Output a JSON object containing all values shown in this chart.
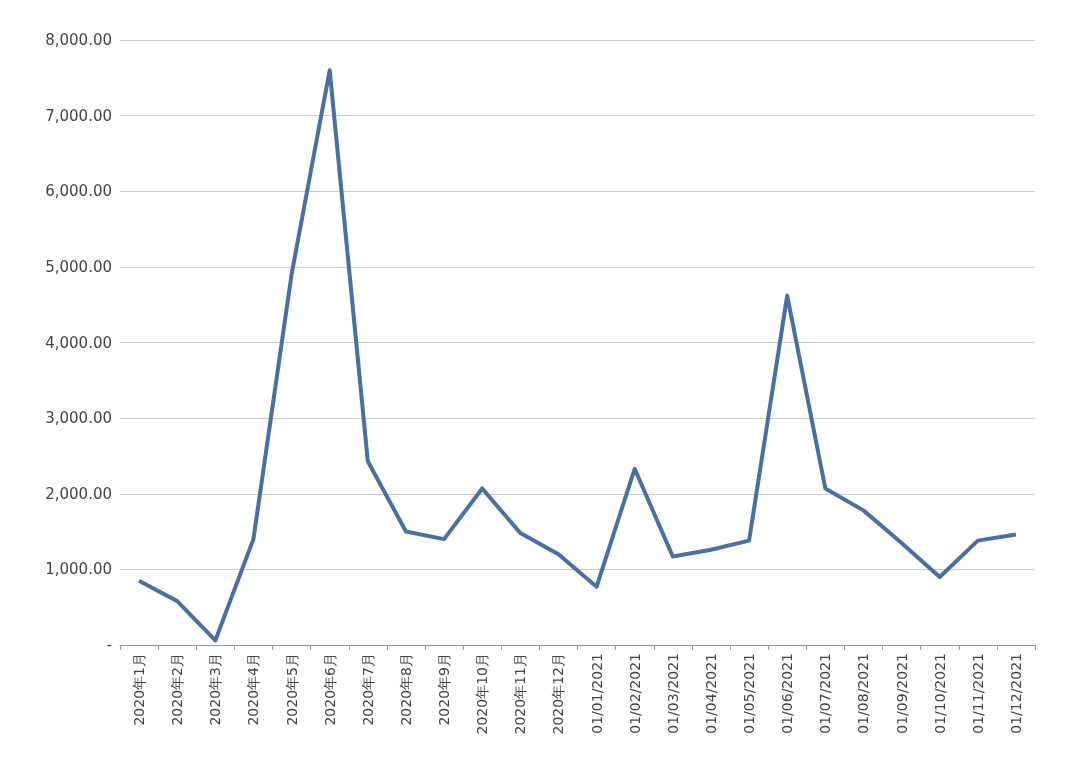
{
  "chart_data": {
    "type": "line",
    "categories": [
      "2020年1月",
      "2020年2月",
      "2020年3月",
      "2020年4月",
      "2020年5月",
      "2020年6月",
      "2020年7月",
      "2020年8月",
      "2020年9月",
      "2020年10月",
      "2020年11月",
      "2020年12月",
      "01/01/2021",
      "01/02/2021",
      "01/03/2021",
      "01/04/2021",
      "01/05/2021",
      "01/06/2021",
      "01/07/2021",
      "01/08/2021",
      "01/09/2021",
      "01/10/2021",
      "01/11/2021",
      "01/12/2021"
    ],
    "series": [
      {
        "color": "#4a6fa5",
        "values": [
          850,
          580,
          60,
          1400,
          4900,
          7600,
          2430,
          1500,
          1400,
          2070,
          1480,
          1200,
          770,
          2330,
          1170,
          1260,
          1380,
          4620,
          2070,
          1780,
          1350,
          900,
          1380,
          1460
        ]
      }
    ],
    "ylim": [
      0,
      8000
    ],
    "yticks": [
      {
        "value": 0,
        "label": "-"
      },
      {
        "value": 1000,
        "label": "1,000.00"
      },
      {
        "value": 2000,
        "label": "2,000.00"
      },
      {
        "value": 3000,
        "label": "3,000.00"
      },
      {
        "value": 4000,
        "label": "4,000.00"
      },
      {
        "value": 5000,
        "label": "5,000.00"
      },
      {
        "value": 6000,
        "label": "6,000.00"
      },
      {
        "value": 7000,
        "label": "7,000.00"
      },
      {
        "value": 8000,
        "label": "8,000.00"
      }
    ],
    "grid": "y",
    "marker": "none",
    "line_style": "solid"
  }
}
